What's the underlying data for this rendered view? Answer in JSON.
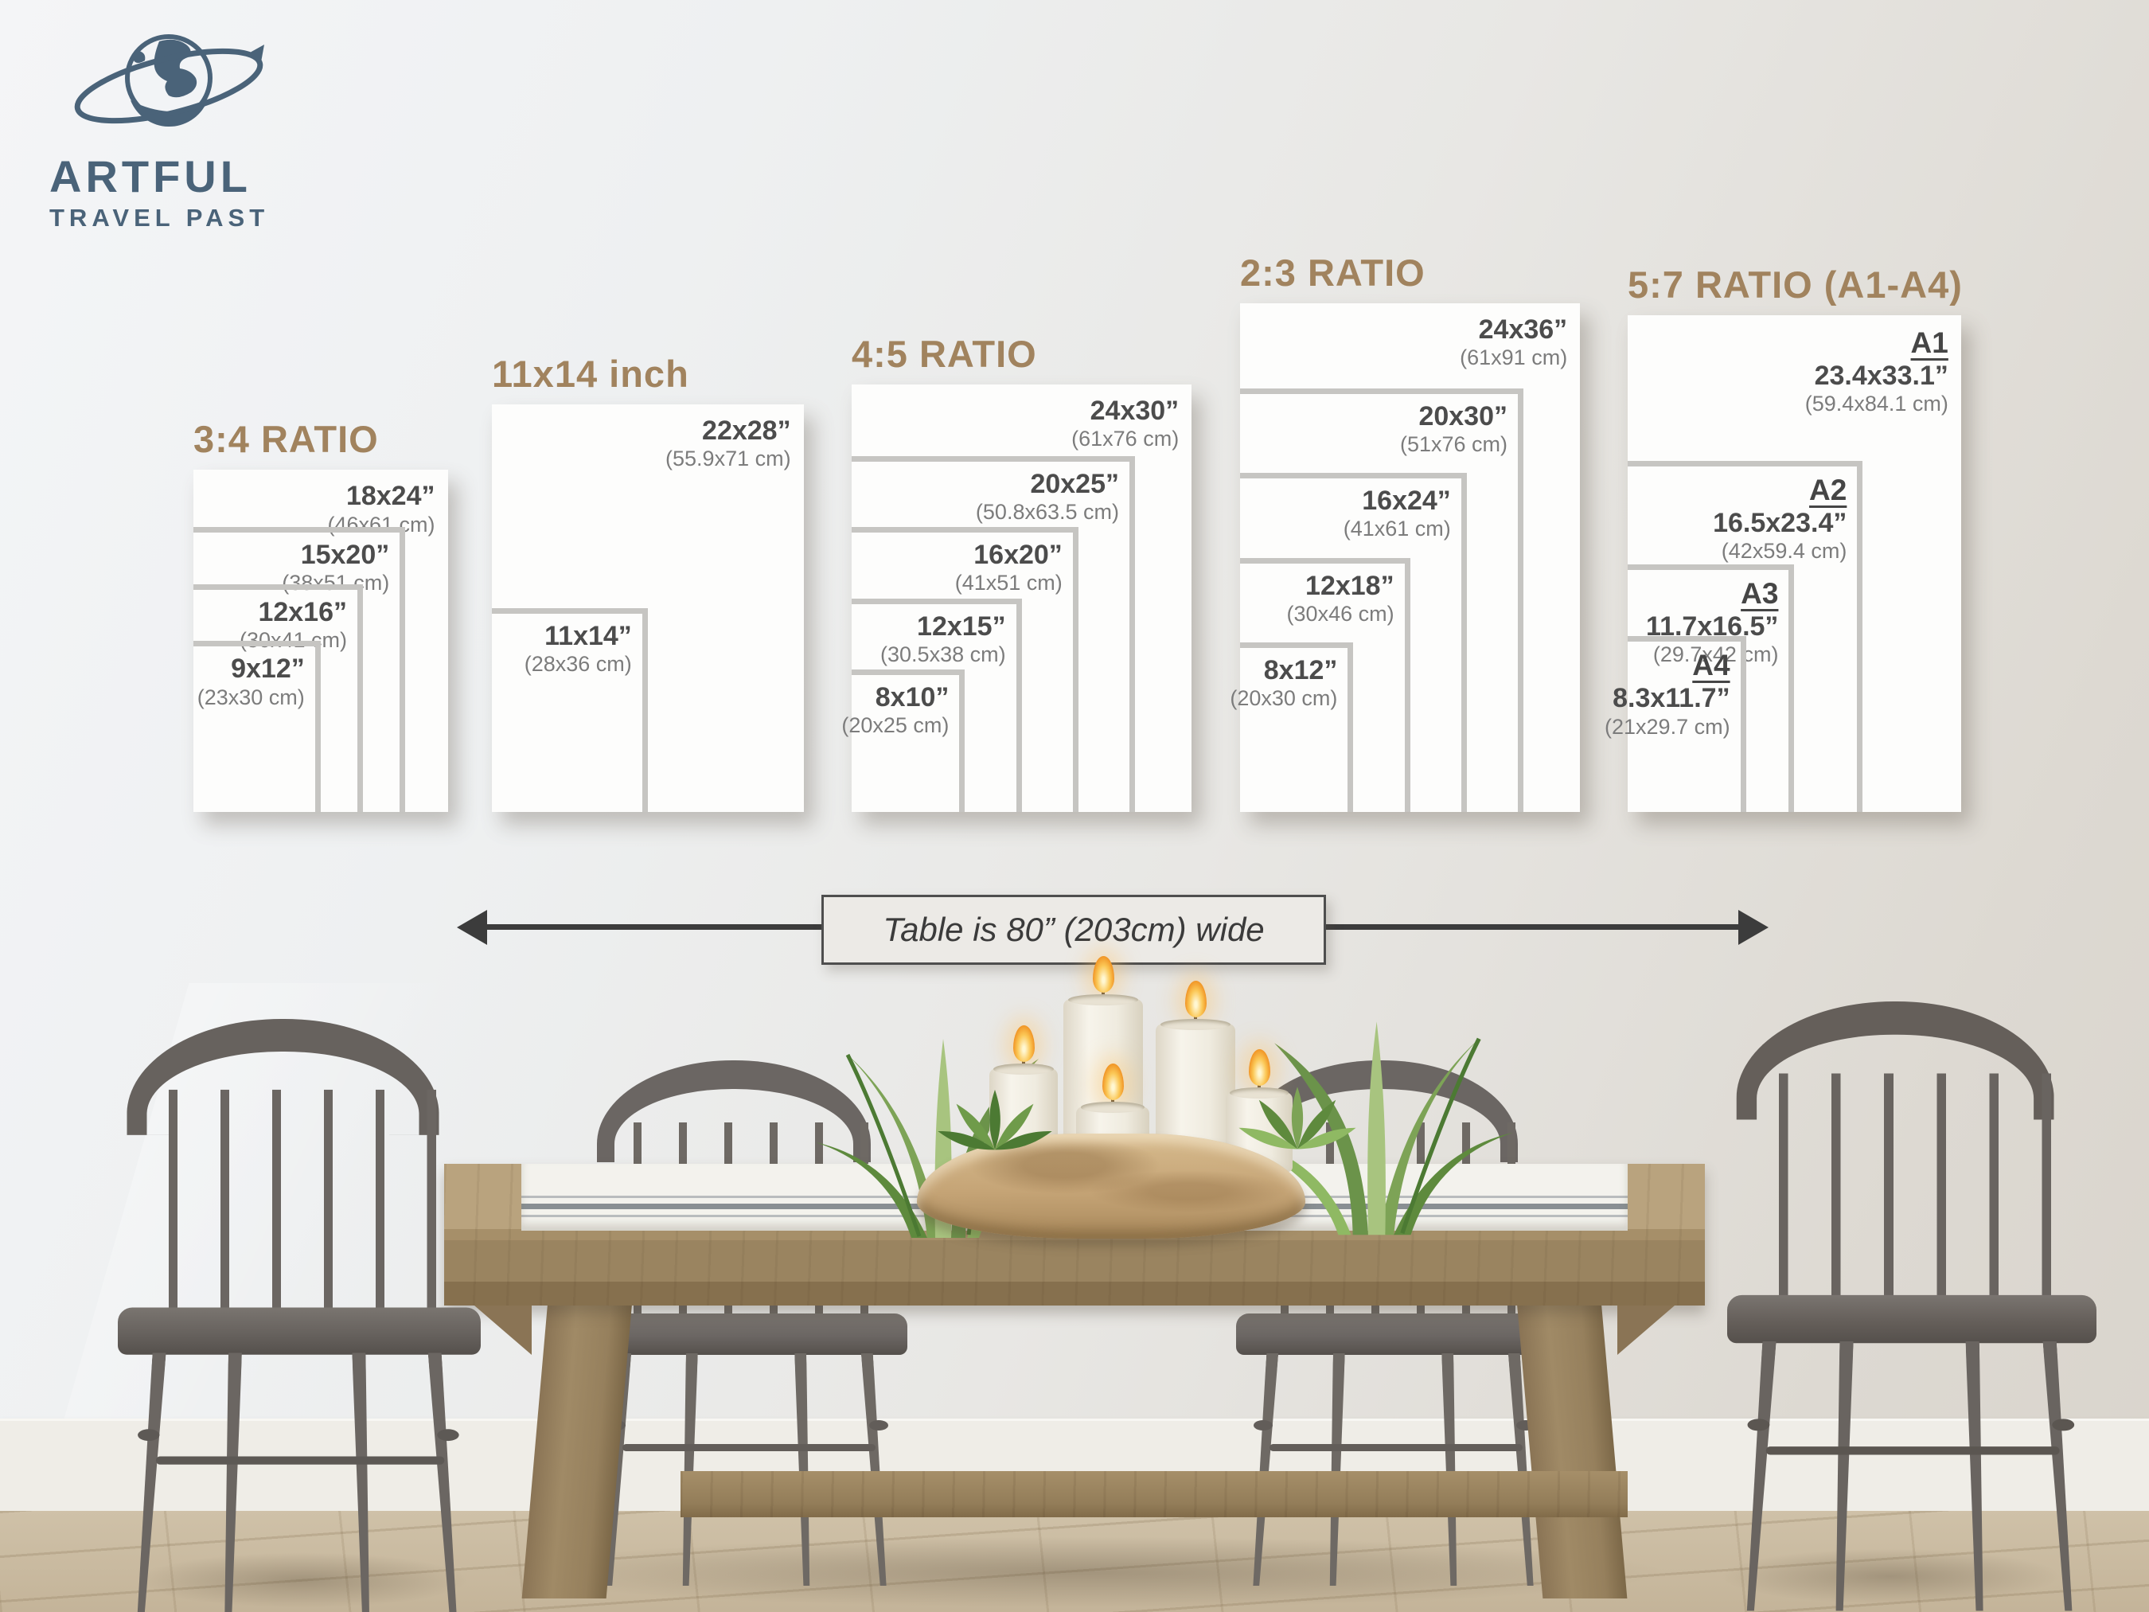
{
  "logo": {
    "title": "ARTFUL",
    "subtitle": "TRAVEL PAST"
  },
  "size_groups": [
    {
      "title": "3:4 RATIO",
      "frames": [
        {
          "inches": "18x24”",
          "cm": "(46x61 cm)",
          "w": 18,
          "h": 24
        },
        {
          "inches": "15x20”",
          "cm": "(38x51 cm)",
          "w": 15,
          "h": 20
        },
        {
          "inches": "12x16”",
          "cm": "(30x41 cm)",
          "w": 12,
          "h": 16
        },
        {
          "inches": "9x12”",
          "cm": "(23x30 cm)",
          "w": 9,
          "h": 12
        }
      ]
    },
    {
      "title": "11x14 inch",
      "frames": [
        {
          "inches": "22x28”",
          "cm": "(55.9x71 cm)",
          "w": 22,
          "h": 28
        },
        {
          "inches": "11x14”",
          "cm": "(28x36 cm)",
          "w": 11,
          "h": 14
        }
      ]
    },
    {
      "title": "4:5 RATIO",
      "frames": [
        {
          "inches": "24x30”",
          "cm": "(61x76 cm)",
          "w": 24,
          "h": 30
        },
        {
          "inches": "20x25”",
          "cm": "(50.8x63.5 cm)",
          "w": 20,
          "h": 25
        },
        {
          "inches": "16x20”",
          "cm": "(41x51 cm)",
          "w": 16,
          "h": 20
        },
        {
          "inches": "12x15”",
          "cm": "(30.5x38 cm)",
          "w": 12,
          "h": 15
        },
        {
          "inches": "8x10”",
          "cm": "(20x25 cm)",
          "w": 8,
          "h": 10
        }
      ]
    },
    {
      "title": "2:3 RATIO",
      "frames": [
        {
          "inches": "24x36”",
          "cm": "(61x91 cm)",
          "w": 24,
          "h": 36
        },
        {
          "inches": "20x30”",
          "cm": "(51x76 cm)",
          "w": 20,
          "h": 30
        },
        {
          "inches": "16x24”",
          "cm": "(41x61 cm)",
          "w": 16,
          "h": 24
        },
        {
          "inches": "12x18”",
          "cm": "(30x46 cm)",
          "w": 12,
          "h": 18
        },
        {
          "inches": "8x12”",
          "cm": "(20x30 cm)",
          "w": 8,
          "h": 12
        }
      ]
    },
    {
      "title": "5:7 RATIO (A1-A4)",
      "frames": [
        {
          "name": "A1",
          "inches": "23.4x33.1”",
          "cm": "(59.4x84.1 cm)",
          "w": 23.4,
          "h": 33.1
        },
        {
          "name": "A2",
          "inches": "16.5x23.4”",
          "cm": "(42x59.4 cm)",
          "w": 16.5,
          "h": 23.4
        },
        {
          "name": "A3",
          "inches": "11.7x16.5”",
          "cm": "(29.7x42 cm)",
          "w": 11.7,
          "h": 16.5
        },
        {
          "name": "A4",
          "inches": "8.3x11.7”",
          "cm": "(21x29.7 cm)",
          "w": 8.3,
          "h": 11.7
        }
      ]
    }
  ],
  "table_width_note": "Table is 80” (203cm) wide",
  "colors": {
    "accent": "#a1835e",
    "label": "#4c4c4c",
    "label_muted": "#7c7c7c",
    "frame_border": "#c6c5c2",
    "logo_blue": "#4a6379"
  }
}
